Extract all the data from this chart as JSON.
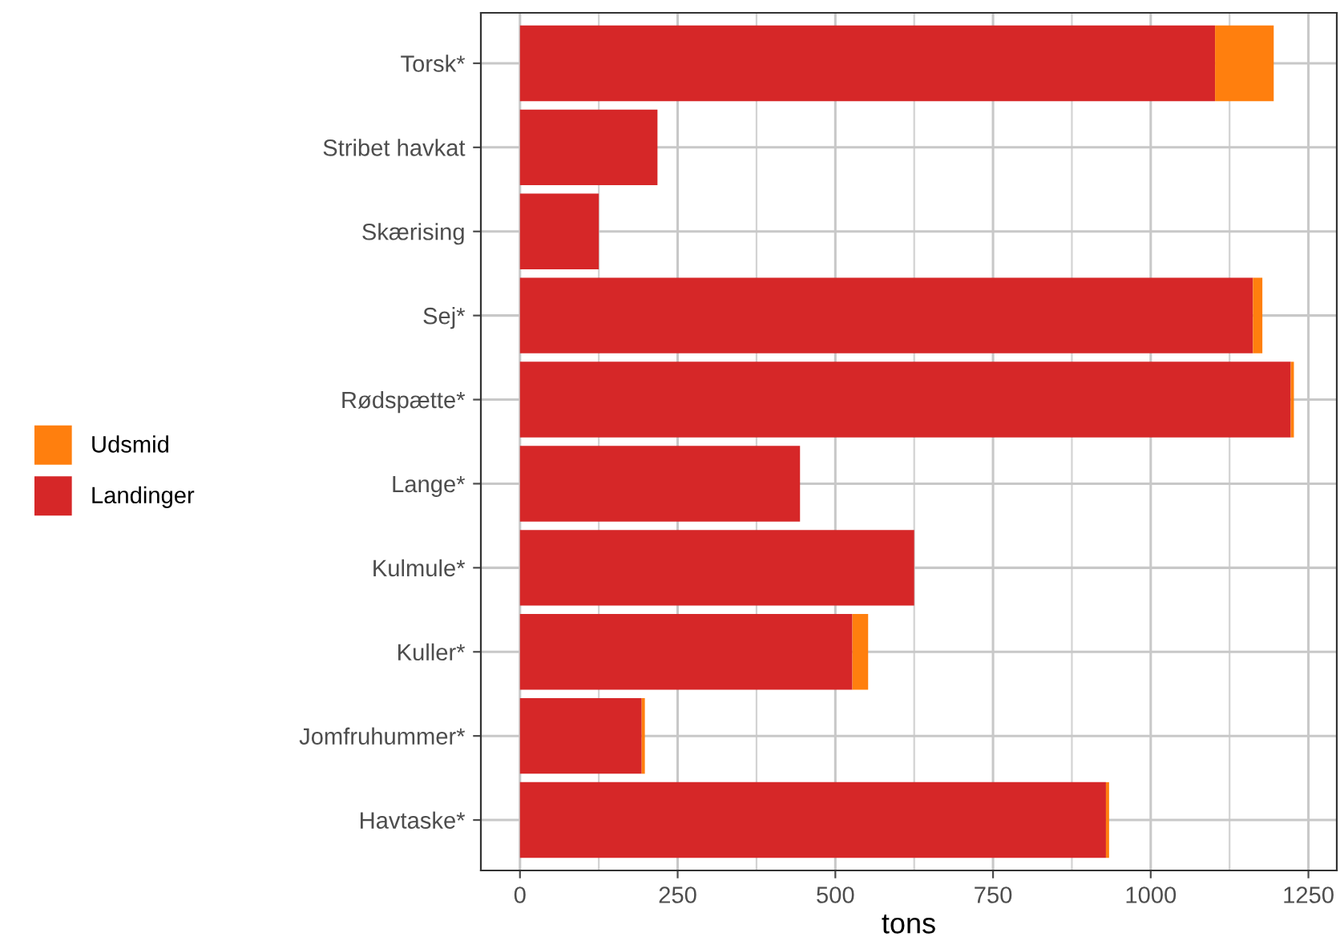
{
  "chart_data": {
    "type": "bar",
    "orientation": "horizontal",
    "stacked": true,
    "xlabel": "tons",
    "categories": [
      "Torsk*",
      "Stribet havkat",
      "Skærising",
      "Sej*",
      "Rødspætte*",
      "Lange*",
      "Kulmule*",
      "Kuller*",
      "Jomfruhummer*",
      "Havtaske*"
    ],
    "series": [
      {
        "name": "Landinger",
        "color": "#d62728",
        "values": [
          1102,
          218,
          125,
          1162,
          1222,
          444,
          625,
          527,
          193,
          929
        ]
      },
      {
        "name": "Udsmid",
        "color": "#ff7f0e",
        "values": [
          93,
          0,
          0,
          15,
          5,
          0,
          0,
          25,
          5,
          5
        ]
      }
    ],
    "xlim": [
      -62,
      1295
    ],
    "xticks": [
      0,
      250,
      500,
      750,
      1000,
      1250
    ],
    "grid": true,
    "legend": "left"
  }
}
